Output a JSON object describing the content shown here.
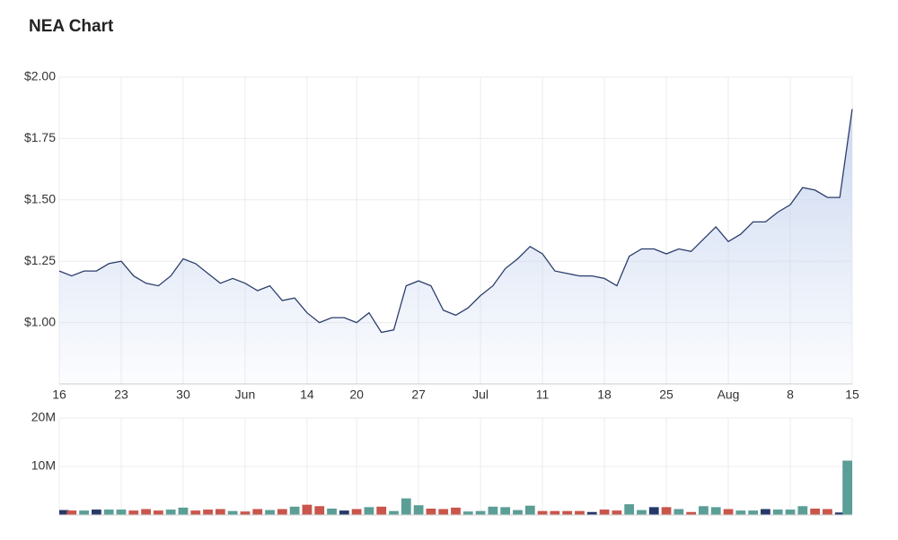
{
  "chart_data": [
    {
      "type": "area",
      "title": "NEA Chart",
      "categories": [
        "16",
        null,
        null,
        null,
        null,
        "23",
        null,
        null,
        null,
        null,
        "30",
        null,
        null,
        null,
        null,
        "Jun",
        null,
        null,
        null,
        null,
        "14",
        null,
        null,
        null,
        "20",
        null,
        null,
        null,
        null,
        "27",
        null,
        null,
        null,
        null,
        "Jul",
        null,
        null,
        null,
        null,
        "11",
        null,
        null,
        null,
        null,
        "18",
        null,
        null,
        null,
        null,
        "25",
        null,
        null,
        null,
        null,
        "Aug",
        null,
        null,
        null,
        null,
        "8",
        null,
        null,
        null,
        null,
        "15"
      ],
      "values": [
        1.21,
        1.19,
        1.21,
        1.21,
        1.24,
        1.25,
        1.19,
        1.16,
        1.15,
        1.19,
        1.26,
        1.24,
        1.2,
        1.16,
        1.18,
        1.16,
        1.13,
        1.15,
        1.09,
        1.1,
        1.04,
        1.0,
        1.02,
        1.02,
        1.0,
        1.04,
        0.96,
        0.97,
        1.15,
        1.17,
        1.15,
        1.05,
        1.03,
        1.06,
        1.11,
        1.15,
        1.22,
        1.26,
        1.31,
        1.28,
        1.21,
        1.2,
        1.19,
        1.19,
        1.18,
        1.15,
        1.27,
        1.3,
        1.3,
        1.28,
        1.3,
        1.29,
        1.34,
        1.39,
        1.33,
        1.36,
        1.41,
        1.41,
        1.45,
        1.48,
        1.55,
        1.54,
        1.51,
        1.51,
        1.87
      ],
      "color": "#2b3d6b",
      "fill_color": "#c6d4ef",
      "ylim": [
        0.75,
        2.0
      ],
      "yticks": [
        {
          "value": 1.0,
          "label": "$1.00"
        },
        {
          "value": 1.25,
          "label": "$1.25"
        },
        {
          "value": 1.5,
          "label": "$1.50"
        },
        {
          "value": 1.75,
          "label": "$1.75"
        },
        {
          "value": 2.0,
          "label": "$2.00"
        }
      ],
      "grid": true
    },
    {
      "type": "bar",
      "values": [
        1000000,
        900000,
        900000,
        1100000,
        1100000,
        1100000,
        900000,
        1200000,
        900000,
        1100000,
        1500000,
        900000,
        1100000,
        1200000,
        800000,
        700000,
        1200000,
        1000000,
        1200000,
        1700000,
        2100000,
        1800000,
        1300000,
        900000,
        1200000,
        1600000,
        1700000,
        800000,
        3400000,
        2000000,
        1300000,
        1200000,
        1500000,
        700000,
        800000,
        1700000,
        1600000,
        1000000,
        1900000,
        800000,
        800000,
        800000,
        800000,
        600000,
        1100000,
        900000,
        2200000,
        1000000,
        1600000,
        1600000,
        1200000,
        600000,
        1800000,
        1600000,
        1200000,
        900000,
        900000,
        1200000,
        1100000,
        1100000,
        1800000,
        1300000,
        1200000,
        500000,
        11200000
      ],
      "up_color": "#5b9e96",
      "down_color": "#c9554b",
      "flat_color": "#26386a",
      "ylim": [
        0,
        20000000
      ],
      "yticks": [
        {
          "value": 10000000,
          "label": "10M"
        },
        {
          "value": 20000000,
          "label": "20M"
        }
      ],
      "grid": true
    }
  ]
}
